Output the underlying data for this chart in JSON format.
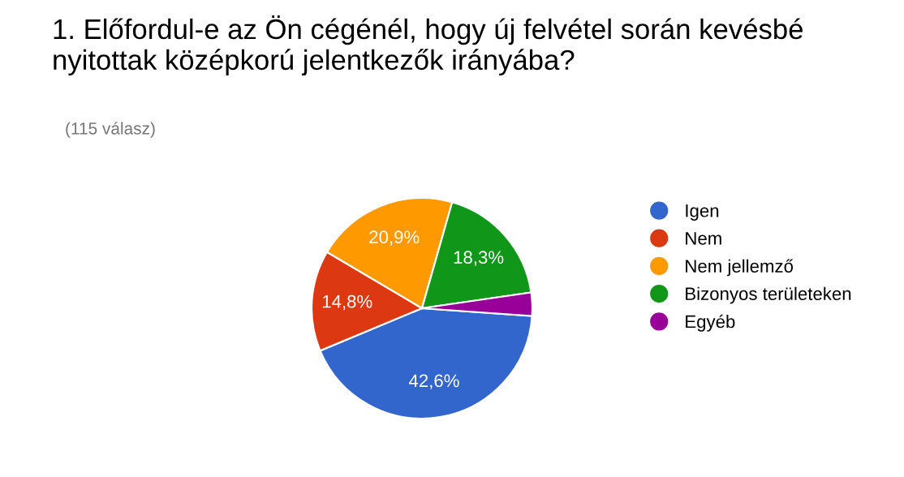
{
  "chart_data": {
    "type": "pie",
    "title": "1. Előfordul-e az Ön cégénél, hogy új felvétel során kevésbé nyitottak középkorú jelentkezők irányába?",
    "subtitle": "(115 válasz)",
    "categories": [
      "Igen",
      "Nem",
      "Nem jellemző",
      "Bizonyos területeken",
      "Egyéb"
    ],
    "values": [
      42.6,
      14.8,
      20.9,
      18.3,
      3.4
    ],
    "colors": [
      "#3366cc",
      "#dc3912",
      "#ff9900",
      "#109618",
      "#990099"
    ],
    "value_labels": [
      "42,6%",
      "14,8%",
      "20,9%",
      "18,3%",
      null
    ],
    "legend": "right"
  }
}
